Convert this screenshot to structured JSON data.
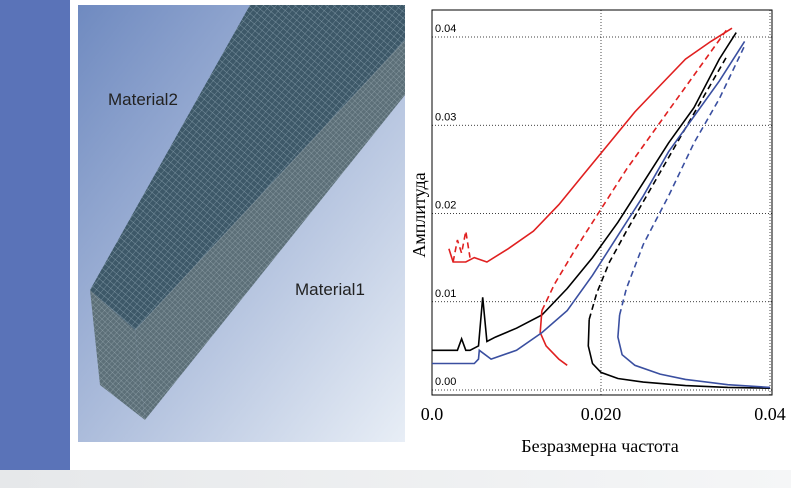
{
  "image": {
    "labels": [
      "Material2",
      "Material1"
    ]
  },
  "chart_data": {
    "type": "line",
    "ylabel": "Амплитуда",
    "xlabel": "Безразмерна частота",
    "xlim": [
      0,
      0.04
    ],
    "ylim": [
      0,
      0.042
    ],
    "xticks": [
      {
        "value": 0,
        "label": "0.0"
      },
      {
        "value": 0.02,
        "label": "0.020"
      },
      {
        "value": 0.04,
        "label": "0.04"
      }
    ],
    "yticks": [
      {
        "value": 0,
        "label": "0.00"
      },
      {
        "value": 0.01,
        "label": "0.01"
      },
      {
        "value": 0.02,
        "label": "0.02"
      },
      {
        "value": 0.03,
        "label": "0.03"
      },
      {
        "value": 0.04,
        "label": "0.04"
      }
    ],
    "grid": true,
    "series": [
      {
        "color": "#000000",
        "dashed": false,
        "x": [
          0,
          0.003,
          0.0035,
          0.004,
          0.0045,
          0.0055,
          0.006,
          0.0065,
          0.0075,
          0.01,
          0.013,
          0.016,
          0.019,
          0.022,
          0.025,
          0.028,
          0.031,
          0.034,
          0.036
        ],
        "values": [
          0.0045,
          0.0045,
          0.0058,
          0.0045,
          0.0045,
          0.005,
          0.0105,
          0.0055,
          0.006,
          0.007,
          0.0085,
          0.0115,
          0.015,
          0.019,
          0.0235,
          0.028,
          0.032,
          0.0375,
          0.0405
        ]
      },
      {
        "color": "#000000",
        "dashed": true,
        "x": [
          0.0186,
          0.0195,
          0.021,
          0.023,
          0.026,
          0.029,
          0.032,
          0.035
        ],
        "values": [
          0.008,
          0.011,
          0.0145,
          0.018,
          0.023,
          0.028,
          0.033,
          0.038
        ]
      },
      {
        "color": "#000000",
        "dashed": false,
        "x": [
          0.0186,
          0.0185,
          0.019,
          0.02,
          0.022,
          0.025,
          0.03,
          0.035,
          0.04
        ],
        "values": [
          0.008,
          0.005,
          0.003,
          0.002,
          0.0013,
          0.0009,
          0.0005,
          0.0003,
          0.0002
        ]
      },
      {
        "color": "#e02020",
        "dashed": false,
        "x": [
          0.002,
          0.0025,
          0.004,
          0.005,
          0.0065,
          0.009,
          0.012,
          0.015,
          0.018,
          0.021,
          0.024,
          0.027,
          0.03,
          0.033,
          0.0355
        ],
        "values": [
          0.016,
          0.0145,
          0.0145,
          0.015,
          0.0145,
          0.016,
          0.018,
          0.021,
          0.0245,
          0.028,
          0.0315,
          0.0345,
          0.0375,
          0.0395,
          0.041
        ]
      },
      {
        "color": "#e02020",
        "dashed": true,
        "x": [
          0.0025,
          0.003,
          0.0035,
          0.004,
          0.0045
        ],
        "values": [
          0.0145,
          0.017,
          0.0155,
          0.018,
          0.015
        ]
      },
      {
        "color": "#e02020",
        "dashed": true,
        "x": [
          0.013,
          0.0145,
          0.017,
          0.02,
          0.023,
          0.026,
          0.029,
          0.032,
          0.035
        ],
        "values": [
          0.009,
          0.012,
          0.016,
          0.0205,
          0.025,
          0.029,
          0.033,
          0.037,
          0.041
        ]
      },
      {
        "color": "#e02020",
        "dashed": false,
        "x": [
          0.013,
          0.0128,
          0.0135,
          0.015,
          0.016
        ],
        "values": [
          0.009,
          0.0065,
          0.005,
          0.0035,
          0.0028
        ]
      },
      {
        "color": "#3a4fa0",
        "dashed": false,
        "x": [
          0,
          0.005,
          0.0055,
          0.0056,
          0.007,
          0.01,
          0.013,
          0.016,
          0.019,
          0.022,
          0.025,
          0.028,
          0.031,
          0.034,
          0.037
        ],
        "values": [
          0.003,
          0.003,
          0.0035,
          0.0045,
          0.0035,
          0.0045,
          0.0065,
          0.009,
          0.013,
          0.0175,
          0.022,
          0.027,
          0.031,
          0.035,
          0.0395
        ]
      },
      {
        "color": "#3a4fa0",
        "dashed": true,
        "x": [
          0.0222,
          0.023,
          0.025,
          0.028,
          0.031,
          0.034,
          0.037
        ],
        "values": [
          0.0085,
          0.0115,
          0.0165,
          0.022,
          0.028,
          0.033,
          0.039
        ]
      },
      {
        "color": "#3a4fa0",
        "dashed": false,
        "x": [
          0.0222,
          0.022,
          0.0225,
          0.024,
          0.027,
          0.03,
          0.035,
          0.04
        ],
        "values": [
          0.0085,
          0.006,
          0.004,
          0.0028,
          0.0018,
          0.0012,
          0.0006,
          0.0003
        ]
      }
    ]
  }
}
